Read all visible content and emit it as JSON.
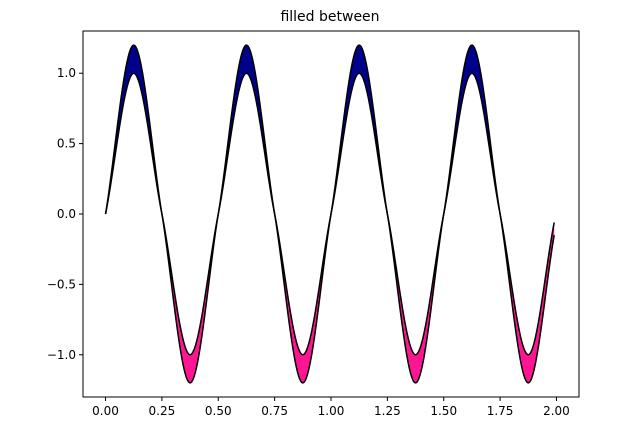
{
  "chart_data": {
    "type": "area",
    "title": "filled between",
    "xlabel": "",
    "ylabel": "",
    "xlim": [
      -0.1,
      2.1
    ],
    "ylim": [
      -1.3,
      1.3
    ],
    "xticks": [
      0.0,
      0.25,
      0.5,
      0.75,
      1.0,
      1.25,
      1.5,
      1.75,
      2.0
    ],
    "xtick_labels": [
      "0.00",
      "0.25",
      "0.50",
      "0.75",
      "1.00",
      "1.25",
      "1.50",
      "1.75",
      "2.00"
    ],
    "yticks": [
      -1.0,
      -0.5,
      0.0,
      0.5,
      1.0
    ],
    "ytick_labels": [
      "−1.0",
      "−0.5",
      "0.0",
      "0.5",
      "1.0"
    ],
    "grid": false,
    "series": [
      {
        "line_color": "#000000",
        "x": [
          0.0,
          0.125,
          0.25,
          0.375,
          0.5,
          0.625,
          0.75,
          0.875,
          1.0,
          1.125,
          1.25,
          1.375,
          1.5,
          1.625,
          1.75,
          1.875,
          1.99
        ],
        "y": [
          0.0,
          1.0,
          0.0,
          -1.0,
          0.0,
          1.0,
          0.0,
          -1.0,
          0.0,
          1.0,
          0.0,
          -1.0,
          0.0,
          1.0,
          0.0,
          -1.0,
          -0.06
        ]
      },
      {
        "line_color": "#000000",
        "x": [
          0.0,
          0.125,
          0.25,
          0.375,
          0.5,
          0.625,
          0.75,
          0.875,
          1.0,
          1.125,
          1.25,
          1.375,
          1.5,
          1.625,
          1.75,
          1.875,
          1.99
        ],
        "y": [
          0.0,
          1.2,
          0.0,
          -1.2,
          0.0,
          1.2,
          0.0,
          -1.2,
          0.0,
          1.2,
          0.0,
          -1.2,
          0.0,
          1.2,
          0.0,
          -1.2,
          -0.15
        ]
      }
    ],
    "fill_between": {
      "color_where_second_above_first": "#00008b",
      "color_where_second_below_first": "#ff1493"
    }
  }
}
